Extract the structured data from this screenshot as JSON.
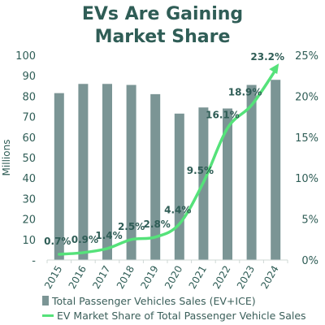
{
  "title_line1": "EVs Are Gaining",
  "title_line2": "Market Share",
  "colors": {
    "bars": "#7b9595",
    "line": "#55e27a",
    "text": "#2f5d56"
  },
  "chart_data": {
    "type": "bar",
    "categories": [
      "2015",
      "2016",
      "2017",
      "2018",
      "2019",
      "2020",
      "2021",
      "2022",
      "2023",
      "2024"
    ],
    "series": [
      {
        "name": "Total Passenger Vehicles Sales (EV+ICE)",
        "type": "bar",
        "axis": "left",
        "values": [
          81.5,
          86,
          86,
          85.5,
          81,
          71.5,
          74.5,
          74,
          85.5,
          88
        ]
      },
      {
        "name": "EV Market Share of Total Passenger Vehicle Sales",
        "type": "line",
        "axis": "right",
        "values": [
          0.7,
          0.9,
          1.4,
          2.5,
          2.8,
          4.4,
          9.5,
          16.1,
          18.9,
          23.2
        ],
        "labels": [
          "0.7%",
          "0.9%",
          "1.4%",
          "2.5%",
          "2.8%",
          "4.4%",
          "9.5%",
          "16.1%",
          "18.9%",
          "23.2%"
        ]
      }
    ],
    "ylabel": "Millions",
    "ylim": [
      0,
      100
    ],
    "y_ticks": [
      "-",
      "10",
      "20",
      "30",
      "40",
      "50",
      "60",
      "70",
      "80",
      "90",
      "100"
    ],
    "y2lim": [
      0,
      25
    ],
    "y2_ticks": [
      "0%",
      "5%",
      "10%",
      "15%",
      "20%",
      "25%"
    ],
    "grid": false,
    "legend_position": "bottom"
  }
}
